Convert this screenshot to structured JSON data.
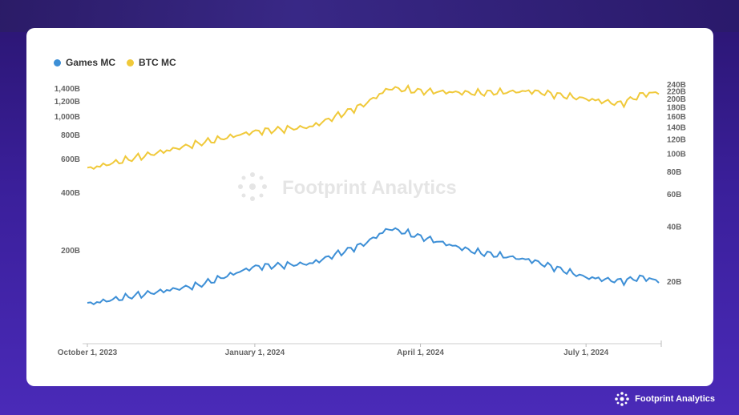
{
  "watermark": "Footprint Analytics",
  "brand": "Footprint Analytics",
  "chart_data": {
    "type": "line",
    "legend": [
      "Games MC",
      "BTC MC"
    ],
    "x_ticks": [
      "October 1, 2023",
      "January 1, 2024",
      "April 1, 2024",
      "July 1, 2024"
    ],
    "left_ticks": [
      "200B",
      "400B",
      "600B",
      "800B",
      "1,000B",
      "1,200B",
      "1,400B"
    ],
    "right_ticks": [
      "20B",
      "40B",
      "60B",
      "80B",
      "100B",
      "120B",
      "140B",
      "160B",
      "180B",
      "200B",
      "220B",
      "240B"
    ],
    "log_scale": true,
    "colors": {
      "games": "#3d8fd6",
      "btc": "#f0c93a"
    },
    "x": [
      "2023-10-01",
      "2023-11-01",
      "2023-12-01",
      "2024-01-01",
      "2024-02-01",
      "2024-03-01",
      "2024-03-15",
      "2024-04-01",
      "2024-05-01",
      "2024-06-01",
      "2024-07-01",
      "2024-07-20",
      "2024-08-01",
      "2024-08-10"
    ],
    "series": [
      {
        "name": "BTC MC",
        "axis": "left",
        "values": [
          530,
          620,
          720,
          830,
          880,
          1150,
          1400,
          1350,
          1320,
          1350,
          1230,
          1160,
          1300,
          1330
        ]
      },
      {
        "name": "Games MC",
        "axis": "right",
        "values": [
          15,
          17,
          19,
          24,
          25,
          32,
          39,
          35,
          29,
          26,
          21,
          20,
          21,
          20
        ]
      }
    ]
  }
}
